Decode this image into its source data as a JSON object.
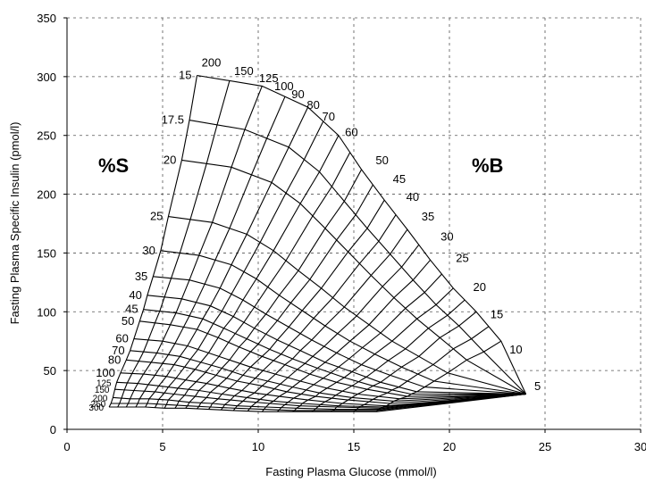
{
  "chart_data": {
    "type": "line",
    "title": "",
    "xlabel": "Fasting Plasma Glucose (mmol/l)",
    "ylabel": "Fasting Plasma Specific Insulin (pmol/l)",
    "xlim": [
      0,
      30
    ],
    "ylim": [
      0,
      350
    ],
    "x_ticks": [
      "0",
      "5",
      "10",
      "15",
      "20",
      "25",
      "30"
    ],
    "y_ticks": [
      "0",
      "50",
      "100",
      "150",
      "200",
      "250",
      "300",
      "350"
    ],
    "grid": true,
    "region_labels": {
      "s": "%S",
      "b": "%B"
    },
    "s_curves": [
      {
        "label": "15",
        "points": [
          [
            6.8,
            301
          ],
          [
            10.2,
            292
          ],
          [
            12.6,
            274
          ],
          [
            14.2,
            250
          ],
          [
            15.4,
            221
          ],
          [
            16.6,
            195
          ],
          [
            17.8,
            170
          ],
          [
            19.0,
            144
          ],
          [
            20.2,
            120
          ],
          [
            21.4,
            100
          ],
          [
            22.7,
            75
          ],
          [
            24.0,
            30
          ]
        ]
      },
      {
        "label": "17.5",
        "points": [
          [
            6.4,
            263
          ],
          [
            9.3,
            255
          ],
          [
            11.6,
            240
          ],
          [
            13.2,
            219
          ],
          [
            14.5,
            194
          ],
          [
            15.7,
            171
          ],
          [
            16.9,
            149
          ],
          [
            18.1,
            127
          ],
          [
            19.3,
            106
          ],
          [
            20.5,
            88
          ],
          [
            21.8,
            66
          ],
          [
            24.0,
            30
          ]
        ]
      },
      {
        "label": "20",
        "points": [
          [
            6.0,
            229
          ],
          [
            8.6,
            223
          ],
          [
            10.7,
            210
          ],
          [
            12.2,
            192
          ],
          [
            13.5,
            171
          ],
          [
            14.7,
            151
          ],
          [
            15.9,
            131
          ],
          [
            17.1,
            112
          ],
          [
            18.3,
            94
          ],
          [
            19.5,
            78
          ],
          [
            20.9,
            59
          ],
          [
            24.0,
            30
          ]
        ]
      },
      {
        "label": "25",
        "points": [
          [
            5.3,
            181
          ],
          [
            7.6,
            176
          ],
          [
            9.4,
            166
          ],
          [
            10.8,
            152
          ],
          [
            12.1,
            135
          ],
          [
            13.3,
            120
          ],
          [
            14.5,
            104
          ],
          [
            15.8,
            89
          ],
          [
            17.0,
            75
          ],
          [
            18.4,
            62
          ],
          [
            19.9,
            48
          ],
          [
            24.0,
            30
          ]
        ]
      },
      {
        "label": "30",
        "points": [
          [
            4.9,
            152
          ],
          [
            6.9,
            148
          ],
          [
            8.6,
            140
          ],
          [
            9.9,
            128
          ],
          [
            11.1,
            114
          ],
          [
            12.3,
            101
          ],
          [
            13.5,
            88
          ],
          [
            14.8,
            75
          ],
          [
            16.1,
            64
          ],
          [
            17.5,
            53
          ],
          [
            19.2,
            41
          ],
          [
            24.0,
            30
          ]
        ]
      },
      {
        "label": "35",
        "points": [
          [
            4.5,
            130
          ],
          [
            6.4,
            127
          ],
          [
            8.0,
            120
          ],
          [
            9.2,
            110
          ],
          [
            10.4,
            98
          ],
          [
            11.6,
            87
          ],
          [
            12.8,
            76
          ],
          [
            14.1,
            65
          ],
          [
            15.4,
            55
          ],
          [
            16.9,
            46
          ],
          [
            18.7,
            36
          ],
          [
            24.0,
            30
          ]
        ]
      },
      {
        "label": "40",
        "points": [
          [
            4.2,
            114
          ],
          [
            6.0,
            111
          ],
          [
            7.5,
            105
          ],
          [
            8.7,
            96
          ],
          [
            9.8,
            86
          ],
          [
            11.0,
            76
          ],
          [
            12.2,
            67
          ],
          [
            13.5,
            57
          ],
          [
            14.9,
            49
          ],
          [
            16.4,
            40
          ],
          [
            18.3,
            32
          ],
          [
            24.0,
            30
          ]
        ]
      },
      {
        "label": "45",
        "points": [
          [
            4.0,
            102
          ],
          [
            5.7,
            99
          ],
          [
            7.1,
            94
          ],
          [
            8.2,
            86
          ],
          [
            9.4,
            77
          ],
          [
            10.6,
            68
          ],
          [
            11.8,
            60
          ],
          [
            13.1,
            52
          ],
          [
            14.5,
            44
          ],
          [
            16.0,
            37
          ],
          [
            18.0,
            30
          ],
          [
            24.0,
            30
          ]
        ]
      },
      {
        "label": "50",
        "points": [
          [
            3.8,
            92
          ],
          [
            5.4,
            89
          ],
          [
            6.8,
            85
          ],
          [
            7.9,
            78
          ],
          [
            9.0,
            70
          ],
          [
            10.2,
            62
          ],
          [
            11.4,
            55
          ],
          [
            12.7,
            47
          ],
          [
            14.1,
            40
          ],
          [
            15.7,
            34
          ],
          [
            17.8,
            28
          ],
          [
            24.0,
            30
          ]
        ]
      },
      {
        "label": "60",
        "points": [
          [
            3.5,
            77
          ],
          [
            5.0,
            75
          ],
          [
            6.3,
            71
          ],
          [
            7.4,
            65
          ],
          [
            8.5,
            59
          ],
          [
            9.6,
            53
          ],
          [
            10.9,
            47
          ],
          [
            12.2,
            41
          ],
          [
            13.6,
            35
          ],
          [
            15.2,
            30
          ],
          [
            17.4,
            26
          ],
          [
            24.0,
            30
          ]
        ]
      },
      {
        "label": "70",
        "points": [
          [
            3.3,
            67
          ],
          [
            4.7,
            65
          ],
          [
            5.9,
            62
          ],
          [
            7.0,
            57
          ],
          [
            8.1,
            52
          ],
          [
            9.2,
            46
          ],
          [
            10.5,
            41
          ],
          [
            11.8,
            36
          ],
          [
            13.2,
            31
          ],
          [
            14.9,
            27
          ],
          [
            17.1,
            24
          ],
          [
            24.0,
            30
          ]
        ]
      },
      {
        "label": "80",
        "points": [
          [
            3.1,
            59
          ],
          [
            4.4,
            57
          ],
          [
            5.6,
            55
          ],
          [
            6.7,
            51
          ],
          [
            7.8,
            46
          ],
          [
            8.9,
            41
          ],
          [
            10.2,
            37
          ],
          [
            11.5,
            32
          ],
          [
            13.0,
            28
          ],
          [
            14.7,
            25
          ],
          [
            16.9,
            22
          ],
          [
            24.0,
            30
          ]
        ]
      },
      {
        "label": "100",
        "points": [
          [
            2.8,
            48
          ],
          [
            4.0,
            47
          ],
          [
            5.2,
            45
          ],
          [
            6.2,
            42
          ],
          [
            7.3,
            39
          ],
          [
            8.5,
            35
          ],
          [
            9.8,
            31
          ],
          [
            11.1,
            28
          ],
          [
            12.6,
            25
          ],
          [
            14.4,
            22
          ],
          [
            16.7,
            20
          ],
          [
            24.0,
            30
          ]
        ]
      },
      {
        "label": "125",
        "points": [
          [
            2.6,
            40
          ],
          [
            3.7,
            39
          ],
          [
            4.8,
            37
          ],
          [
            5.8,
            35
          ],
          [
            6.9,
            33
          ],
          [
            8.1,
            30
          ],
          [
            9.4,
            27
          ],
          [
            10.8,
            24
          ],
          [
            12.3,
            22
          ],
          [
            14.2,
            20
          ],
          [
            16.5,
            19
          ],
          [
            24.0,
            30
          ]
        ]
      },
      {
        "label": "150",
        "points": [
          [
            2.5,
            34
          ],
          [
            3.5,
            33
          ],
          [
            4.6,
            32
          ],
          [
            5.6,
            30
          ],
          [
            6.7,
            28
          ],
          [
            7.9,
            26
          ],
          [
            9.2,
            24
          ],
          [
            10.6,
            22
          ],
          [
            12.2,
            20
          ],
          [
            14.1,
            19
          ],
          [
            16.4,
            18
          ],
          [
            24.0,
            30
          ]
        ]
      },
      {
        "label": "200",
        "points": [
          [
            2.4,
            27
          ],
          [
            3.3,
            26
          ],
          [
            4.3,
            26
          ],
          [
            5.3,
            25
          ],
          [
            6.4,
            23
          ],
          [
            7.6,
            22
          ],
          [
            8.9,
            20
          ],
          [
            10.4,
            19
          ],
          [
            12.0,
            18
          ],
          [
            14.0,
            17
          ],
          [
            16.3,
            17
          ],
          [
            24.0,
            30
          ]
        ]
      },
      {
        "label": "250",
        "points": [
          [
            2.3,
            22
          ],
          [
            3.2,
            22
          ],
          [
            4.2,
            22
          ],
          [
            5.2,
            21
          ],
          [
            6.3,
            20
          ],
          [
            7.5,
            19
          ],
          [
            8.8,
            18
          ],
          [
            10.3,
            17
          ],
          [
            11.9,
            16
          ],
          [
            13.9,
            16
          ],
          [
            16.2,
            16
          ],
          [
            24.0,
            30
          ]
        ]
      },
      {
        "label": "300",
        "points": [
          [
            2.2,
            19
          ],
          [
            3.1,
            19
          ],
          [
            4.1,
            19
          ],
          [
            5.1,
            18
          ],
          [
            6.2,
            18
          ],
          [
            7.4,
            17
          ],
          [
            8.7,
            16
          ],
          [
            10.2,
            15
          ],
          [
            11.8,
            15
          ],
          [
            13.8,
            15
          ],
          [
            16.2,
            15
          ],
          [
            24.0,
            30
          ]
        ]
      }
    ],
    "b_labels": [
      "200",
      "150",
      "125",
      "100",
      "90",
      "80",
      "70",
      "60",
      "50",
      "45",
      "40",
      "35",
      "30",
      "25",
      "20",
      "15",
      "10",
      "5"
    ]
  }
}
